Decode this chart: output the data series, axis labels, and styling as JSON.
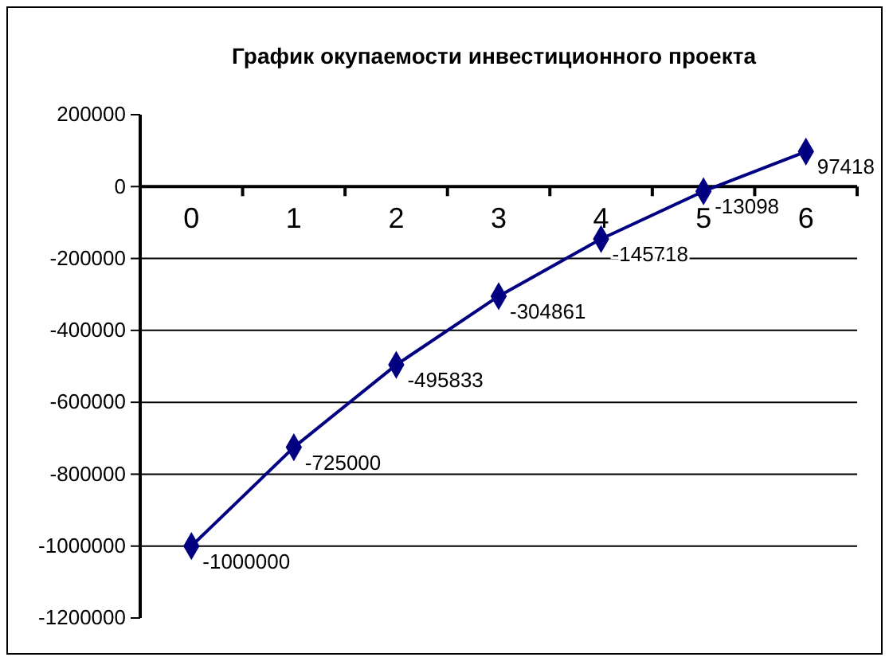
{
  "chart_data": {
    "type": "line",
    "title": "График окупаемости инвестиционного проекта",
    "categories": [
      "0",
      "1",
      "2",
      "3",
      "4",
      "5",
      "6"
    ],
    "series": [
      {
        "color": "#000080",
        "values": [
          -1000000,
          -725000,
          -495833,
          -304861,
          -145718,
          -13098,
          97418
        ]
      }
    ],
    "ylim": [
      -1200000,
      200000
    ],
    "yticks": [
      -1200000,
      -1000000,
      -800000,
      -600000,
      -400000,
      -200000,
      0,
      200000
    ],
    "grid": "y",
    "marker": "diamond",
    "data_labels": true
  }
}
